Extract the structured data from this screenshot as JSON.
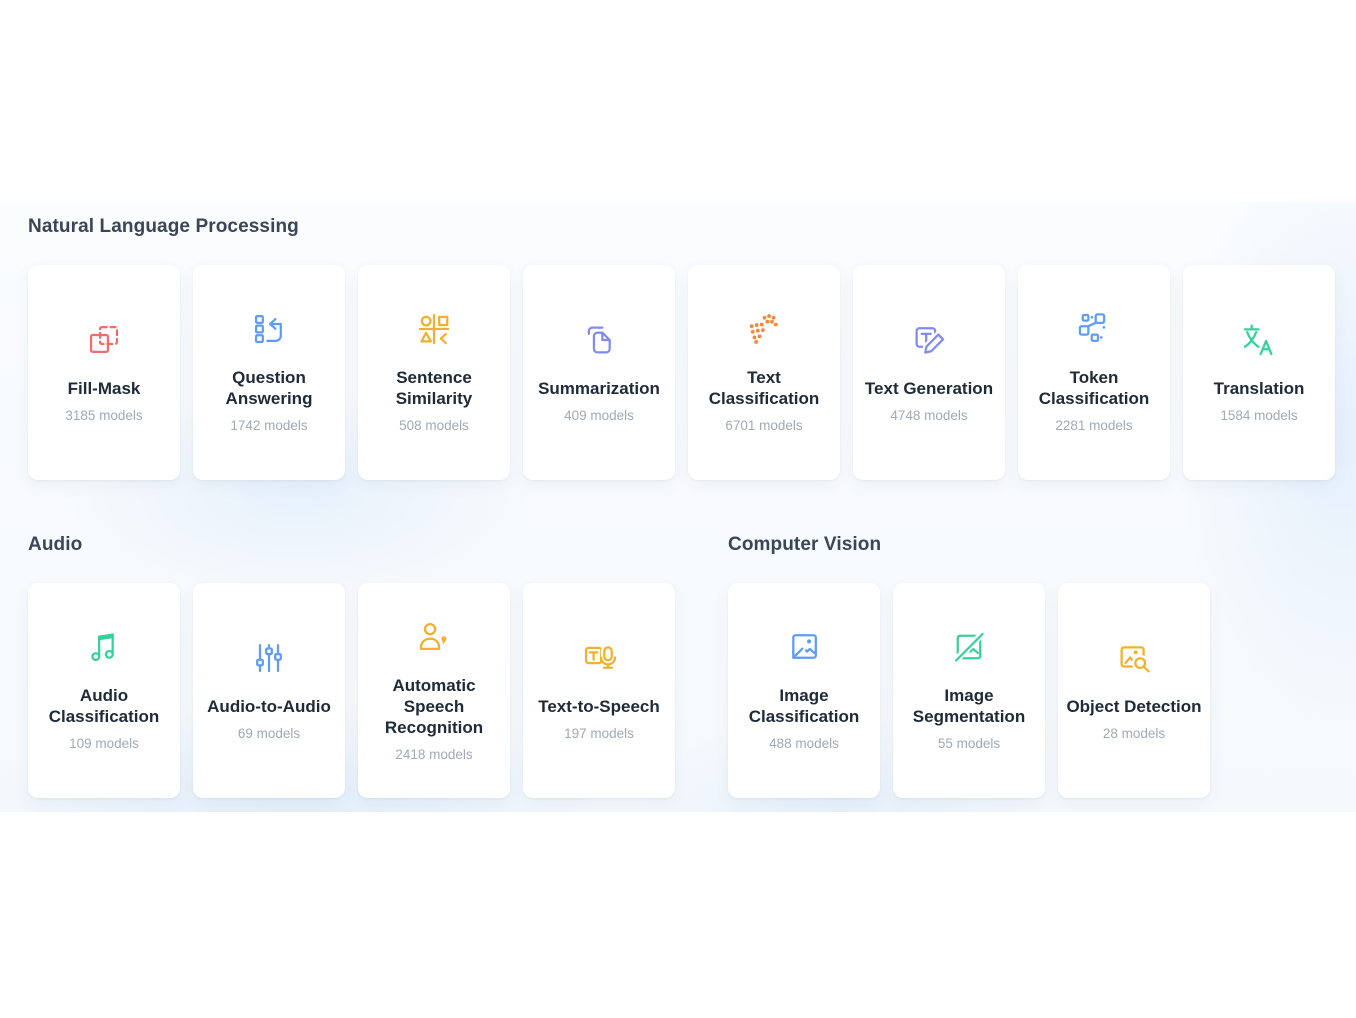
{
  "sections": [
    {
      "title": "Natural Language Processing",
      "cards": [
        {
          "label": "Fill-Mask",
          "count": "3185 models",
          "icon": "fill-mask-icon",
          "color": "#f26c6c"
        },
        {
          "label": "Question Answering",
          "count": "1742 models",
          "icon": "question-answering-icon",
          "color": "#5f9df4"
        },
        {
          "label": "Sentence Similarity",
          "count": "508 models",
          "icon": "sentence-similarity-icon",
          "color": "#f3b02c"
        },
        {
          "label": "Summarization",
          "count": "409 models",
          "icon": "summarization-icon",
          "color": "#818af4"
        },
        {
          "label": "Text Classification",
          "count": "6701 models",
          "icon": "text-classification-icon",
          "color": "#f6883d"
        },
        {
          "label": "Text Generation",
          "count": "4748 models",
          "icon": "text-generation-icon",
          "color": "#818af4"
        },
        {
          "label": "Token Classification",
          "count": "2281 models",
          "icon": "token-classification-icon",
          "color": "#5f9df4"
        },
        {
          "label": "Translation",
          "count": "1584 models",
          "icon": "translation-icon",
          "color": "#35d19d"
        }
      ]
    },
    {
      "title": "Audio",
      "cards": [
        {
          "label": "Audio Classification",
          "count": "109 models",
          "icon": "audio-classification-icon",
          "color": "#35d19d"
        },
        {
          "label": "Audio-to-Audio",
          "count": "69 models",
          "icon": "audio-to-audio-icon",
          "color": "#5f9df4"
        },
        {
          "label": "Automatic Speech Recognition",
          "count": "2418 models",
          "icon": "automatic-speech-recognition-icon",
          "color": "#f3b02c"
        },
        {
          "label": "Text-to-Speech",
          "count": "197 models",
          "icon": "text-to-speech-icon",
          "color": "#f3b02c"
        }
      ]
    },
    {
      "title": "Computer Vision",
      "cards": [
        {
          "label": "Image Classification",
          "count": "488 models",
          "icon": "image-classification-icon",
          "color": "#5f9df4"
        },
        {
          "label": "Image Segmentation",
          "count": "55 models",
          "icon": "image-segmentation-icon",
          "color": "#35d19d"
        },
        {
          "label": "Object Detection",
          "count": "28 models",
          "icon": "object-detection-icon",
          "color": "#f3b02c"
        }
      ]
    }
  ]
}
